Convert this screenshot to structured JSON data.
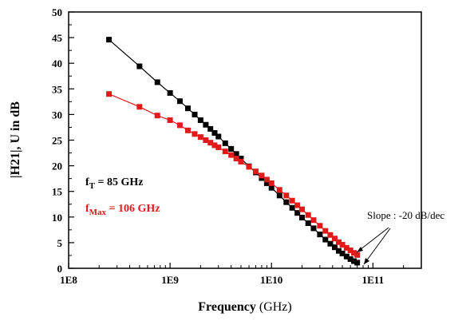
{
  "chart_data": {
    "type": "line",
    "x_scale": "log",
    "xlim": [
      100000000.0,
      300000000000.0
    ],
    "ylim": [
      0,
      50
    ],
    "x_ticks": [
      {
        "value": 100000000.0,
        "label": "1E8"
      },
      {
        "value": 1000000000.0,
        "label": "1E9"
      },
      {
        "value": 10000000000.0,
        "label": "1E10"
      },
      {
        "value": 100000000000.0,
        "label": "1E11"
      }
    ],
    "y_ticks": [
      0,
      5,
      10,
      15,
      20,
      25,
      30,
      35,
      40,
      45,
      50
    ],
    "xlabel_bold": "Frequency",
    "xlabel_rest": " (GHz)",
    "ylabel": "|H21|, U in dB",
    "series": [
      {
        "color": "#000000",
        "x": [
          250000000.0,
          500000000.0,
          750000000.0,
          1000000000.0,
          1250000000.0,
          1500000000.0,
          1750000000.0,
          2000000000.0,
          2250000000.0,
          2500000000.0,
          2750000000.0,
          3000000000.0,
          3500000000.0,
          4000000000.0,
          4500000000.0,
          5000000000.0,
          6000000000.0,
          7000000000.0,
          8000000000.0,
          9000000000.0,
          10000000000.0,
          12000000000.0,
          14000000000.0,
          16000000000.0,
          18000000000.0,
          20000000000.0,
          23000000000.0,
          26000000000.0,
          30000000000.0,
          34000000000.0,
          38000000000.0,
          42000000000.0,
          46000000000.0,
          50000000000.0,
          55000000000.0,
          60000000000.0,
          65000000000.0,
          70000000000.0
        ],
        "y": [
          44.6,
          39.4,
          36.3,
          34.2,
          32.6,
          31.2,
          30.0,
          28.9,
          28.0,
          27.2,
          26.4,
          25.7,
          24.4,
          23.3,
          22.3,
          21.4,
          19.9,
          18.7,
          17.6,
          16.6,
          15.7,
          14.2,
          12.9,
          11.8,
          10.8,
          9.9,
          8.8,
          7.8,
          6.6,
          5.6,
          4.8,
          4.1,
          3.4,
          2.9,
          2.3,
          1.8,
          1.4,
          1.1
        ]
      },
      {
        "color": "#e31a1c",
        "x": [
          250000000.0,
          500000000.0,
          750000000.0,
          1000000000.0,
          1250000000.0,
          1500000000.0,
          1750000000.0,
          2000000000.0,
          2250000000.0,
          2500000000.0,
          2750000000.0,
          3000000000.0,
          3500000000.0,
          4000000000.0,
          4500000000.0,
          5000000000.0,
          6000000000.0,
          7000000000.0,
          8000000000.0,
          9000000000.0,
          10000000000.0,
          12000000000.0,
          14000000000.0,
          16000000000.0,
          18000000000.0,
          20000000000.0,
          23000000000.0,
          26000000000.0,
          30000000000.0,
          34000000000.0,
          38000000000.0,
          42000000000.0,
          46000000000.0,
          50000000000.0,
          55000000000.0,
          60000000000.0,
          65000000000.0,
          70000000000.0
        ],
        "y": [
          34.0,
          31.5,
          29.8,
          28.9,
          27.9,
          26.9,
          26.2,
          25.6,
          25.0,
          24.5,
          24.0,
          23.6,
          22.8,
          22.1,
          21.4,
          20.8,
          19.8,
          18.9,
          18.1,
          17.3,
          16.6,
          15.3,
          14.2,
          13.2,
          12.3,
          11.5,
          10.4,
          9.4,
          8.3,
          7.3,
          6.5,
          5.8,
          5.1,
          4.6,
          4.0,
          3.5,
          3.0,
          2.6
        ]
      }
    ],
    "annotations": {
      "ft_main": "f",
      "ft_sub": "T",
      "ft_value": " = 85 GHz",
      "fmax_main": "f",
      "fmax_sub": "Max",
      "fmax_value": " = 106 GHz",
      "slope": "Slope : -20 dB/dec"
    }
  }
}
